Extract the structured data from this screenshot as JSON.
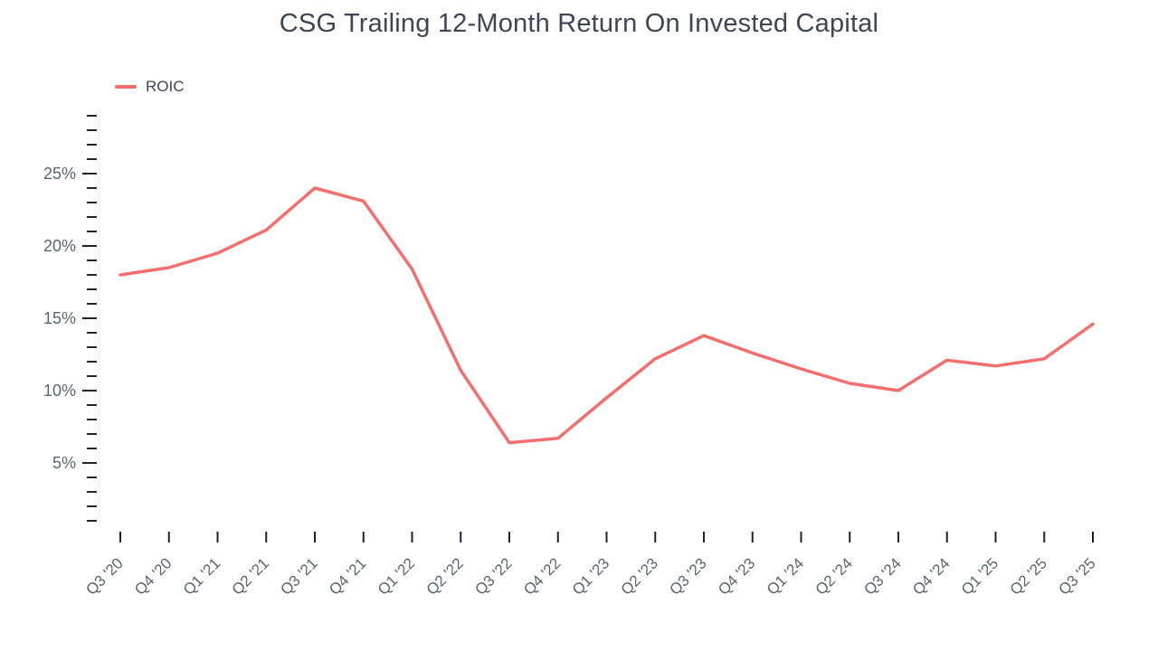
{
  "title": "CSG Trailing 12-Month Return On Invested Capital",
  "legend": {
    "label": "ROIC",
    "color": "#f56e6e"
  },
  "chart_data": {
    "type": "line",
    "title": "CSG Trailing 12-Month Return On Invested Capital",
    "categories": [
      "Q3 '20",
      "Q4 '20",
      "Q1 '21",
      "Q2 '21",
      "Q3 '21",
      "Q4 '21",
      "Q1 '22",
      "Q2 '22",
      "Q3 '22",
      "Q4 '22",
      "Q1 '23",
      "Q2 '23",
      "Q3 '23",
      "Q4 '23",
      "Q1 '24",
      "Q2 '24",
      "Q3 '24",
      "Q4 '24",
      "Q1 '25",
      "Q2 '25",
      "Q3 '25"
    ],
    "series": [
      {
        "name": "ROIC",
        "color": "#f56e6e",
        "values": [
          18.0,
          18.5,
          19.5,
          21.1,
          24.0,
          23.1,
          18.4,
          11.4,
          6.4,
          6.7,
          9.5,
          12.2,
          13.8,
          12.6,
          11.5,
          10.5,
          10.0,
          12.1,
          11.7,
          12.2,
          14.6
        ]
      }
    ],
    "xlabel": "",
    "ylabel": "",
    "ylim": [
      0,
      29
    ],
    "yticks_major": [
      5,
      10,
      15,
      20,
      25
    ],
    "ytick_minor_step": 1,
    "ytick_label_suffix": "%",
    "grid": false,
    "legend_position": "top-left"
  }
}
